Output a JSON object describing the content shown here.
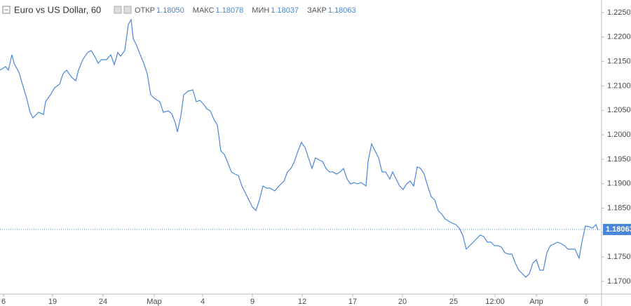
{
  "chart_data": {
    "type": "line",
    "title": "Euro vs US Dollar, 60",
    "ohlc": [
      {
        "label": "ОТКР",
        "value": "1.18050"
      },
      {
        "label": "МАКС",
        "value": "1.18078"
      },
      {
        "label": "МИН",
        "value": "1.18037"
      },
      {
        "label": "ЗАКР",
        "value": "1.18063"
      }
    ],
    "x": [
      0,
      8,
      12,
      17,
      20,
      27,
      32,
      38,
      43,
      47,
      55,
      62,
      65,
      72,
      78,
      85,
      90,
      95,
      102,
      108,
      112,
      118,
      125,
      130,
      135,
      140,
      145,
      152,
      158,
      163,
      168,
      172,
      178,
      183,
      187,
      190,
      195,
      200,
      205,
      210,
      215,
      220,
      228,
      233,
      240,
      245,
      250,
      253,
      258,
      262,
      268,
      275,
      280,
      285,
      290,
      295,
      300,
      305,
      310,
      315,
      320,
      325,
      330,
      335,
      340,
      345,
      350,
      355,
      360,
      365,
      370,
      375,
      380,
      385,
      392,
      398,
      405,
      410,
      415,
      420,
      425,
      430,
      435,
      440,
      445,
      450,
      455,
      460,
      465,
      470,
      475,
      480,
      485,
      490,
      495,
      500,
      505,
      510,
      515,
      522,
      525,
      530,
      535,
      540,
      545,
      550,
      556,
      560,
      565,
      570,
      575,
      580,
      585,
      590,
      595,
      600,
      605,
      610,
      615,
      620,
      625,
      630,
      635,
      640,
      645,
      650,
      655,
      660,
      665,
      670,
      675,
      680,
      685,
      690,
      695,
      700,
      705,
      710,
      715,
      720,
      725,
      730,
      735,
      740,
      745,
      750,
      755,
      760,
      765,
      770,
      775,
      780,
      785,
      790,
      795,
      800,
      805,
      810,
      815,
      820,
      826,
      830,
      835,
      840,
      845,
      850,
      853
    ],
    "series": [
      {
        "color": "#4a86d8",
        "values": [
          1.21323,
          1.21394,
          1.21323,
          1.21638,
          1.21466,
          1.21279,
          1.21035,
          1.20748,
          1.20461,
          1.20346,
          1.20461,
          1.20418,
          1.20676,
          1.2082,
          1.20964,
          1.21035,
          1.21251,
          1.21323,
          1.21179,
          1.21107,
          1.21323,
          1.21538,
          1.21682,
          1.21725,
          1.2161,
          1.21466,
          1.21538,
          1.21538,
          1.21638,
          1.21437,
          1.21682,
          1.2161,
          1.21725,
          1.22256,
          1.22356,
          1.21969,
          1.21825,
          1.21638,
          1.21466,
          1.21251,
          1.2082,
          1.20748,
          1.20676,
          1.20461,
          1.2049,
          1.20432,
          1.20246,
          1.20059,
          1.20389,
          1.2082,
          1.20892,
          1.2092,
          1.20676,
          1.20705,
          1.20633,
          1.20533,
          1.2049,
          1.20317,
          1.20202,
          1.19671,
          1.19599,
          1.19427,
          1.1924,
          1.19197,
          1.19169,
          1.18953,
          1.1881,
          1.18666,
          1.18522,
          1.18451,
          1.18666,
          1.18953,
          1.1891,
          1.1891,
          1.18853,
          1.18953,
          1.19054,
          1.1924,
          1.19312,
          1.19456,
          1.19671,
          1.19843,
          1.19743,
          1.19528,
          1.19312,
          1.19528,
          1.19484,
          1.19456,
          1.19312,
          1.1924,
          1.1924,
          1.19197,
          1.1924,
          1.19312,
          1.19097,
          1.18996,
          1.19025,
          1.18996,
          1.19025,
          1.18953,
          1.19456,
          1.19815,
          1.19671,
          1.19528,
          1.1924,
          1.1924,
          1.19097,
          1.1924,
          1.19097,
          1.18953,
          1.18881,
          1.18996,
          1.19054,
          1.18953,
          1.19341,
          1.19312,
          1.19197,
          1.18953,
          1.18738,
          1.18666,
          1.18451,
          1.18379,
          1.18278,
          1.18235,
          1.18192,
          1.18163,
          1.18092,
          1.17948,
          1.17661,
          1.17733,
          1.17804,
          1.17876,
          1.17948,
          1.17919,
          1.17804,
          1.17804,
          1.17733,
          1.17733,
          1.17704,
          1.17589,
          1.1756,
          1.1756,
          1.17374,
          1.1723,
          1.17158,
          1.17086,
          1.17158,
          1.17374,
          1.17445,
          1.1723,
          1.1723,
          1.17589,
          1.17733,
          1.17761,
          1.17804,
          1.17776,
          1.17733,
          1.17661,
          1.17661,
          1.17661,
          1.17474,
          1.17804,
          1.18135,
          1.1812,
          1.18092,
          1.18163,
          1.18048
        ]
      }
    ],
    "last_price": {
      "value": 1.18063,
      "label": "1.18063",
      "color": "#4a86d8"
    },
    "xlim": [
      0,
      858
    ],
    "xticks": [
      {
        "value": 5,
        "label": "6"
      },
      {
        "value": 75,
        "label": "19"
      },
      {
        "value": 147,
        "label": "24"
      },
      {
        "value": 220,
        "label": "Мар"
      },
      {
        "value": 289,
        "label": "4"
      },
      {
        "value": 360,
        "label": "9"
      },
      {
        "value": 431,
        "label": "12"
      },
      {
        "value": 503,
        "label": "17"
      },
      {
        "value": 574,
        "label": "20"
      },
      {
        "value": 647,
        "label": "25"
      },
      {
        "value": 706,
        "label": "12:00"
      },
      {
        "value": 765,
        "label": "Апр"
      },
      {
        "value": 836,
        "label": "6"
      }
    ],
    "ylim": [
      1.16756,
      1.22758
    ],
    "yticks": [
      {
        "value": 1.17,
        "label": "1.17000"
      },
      {
        "value": 1.175,
        "label": "1.17500"
      },
      {
        "value": 1.18,
        "label": "1.18000"
      },
      {
        "value": 1.185,
        "label": "1.18500"
      },
      {
        "value": 1.19,
        "label": "1.19000"
      },
      {
        "value": 1.195,
        "label": "1.19500"
      },
      {
        "value": 1.2,
        "label": "1.20000"
      },
      {
        "value": 1.205,
        "label": "1.20500"
      },
      {
        "value": 1.21,
        "label": "1.21000"
      },
      {
        "value": 1.215,
        "label": "1.21500"
      },
      {
        "value": 1.22,
        "label": "1.22000"
      },
      {
        "value": 1.225,
        "label": "1.22500"
      }
    ],
    "grid": false
  }
}
